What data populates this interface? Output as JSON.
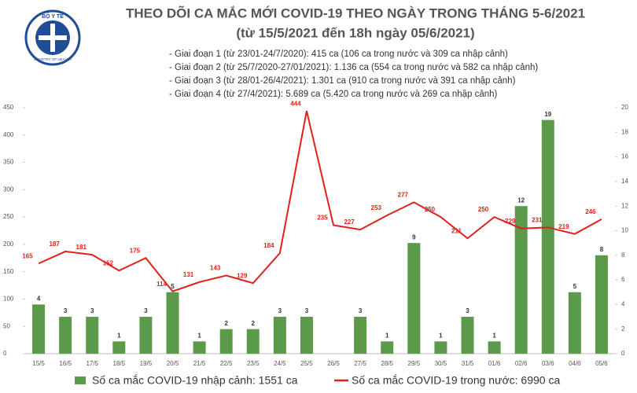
{
  "logo": {
    "top": "BỘ Y TẾ",
    "bottom": "MINISTRY OF HEALTH"
  },
  "chart_data": {
    "type": "combo",
    "title": "THEO DÕI CA MẮC MỚI COVID-19 THEO NGÀY TRONG THÁNG 5-6/2021",
    "subtitle": "(từ 15/5/2021 đến 18h ngày 05/6/2021)",
    "notes": [
      "- Giai đoạn 1 (từ 23/01-24/7/2020): 415 ca (106 ca trong nước và 309 ca nhập cảnh)",
      "- Giai đoạn 2 (từ 25/7/2020-27/01/2021): 1.136 ca (554 ca trong nước và 582 ca nhập cảnh)",
      "- Giai đoạn 3 (từ 28/01-26/4/2021): 1.301 ca (910 ca trong nước và 391 ca nhập cảnh)",
      "- Giai đoạn 4 (từ 27/4/2021): 5.689 ca (5.420 ca trong nước và 269 ca nhập cảnh)"
    ],
    "categories": [
      "15/5",
      "16/5",
      "17/5",
      "18/5",
      "19/5",
      "20/5",
      "21/5",
      "22/5",
      "23/5",
      "24/5",
      "25/5",
      "26/5",
      "27/5",
      "28/5",
      "29/5",
      "30/5",
      "31/5",
      "01/6",
      "02/6",
      "03/6",
      "04/6",
      "05/6"
    ],
    "series": [
      {
        "name": "Số ca mắc COVID-19 nhập cảnh: 1551 ca",
        "type": "bar",
        "axis": "y2",
        "color": "#5b9a4a",
        "values": [
          4,
          3,
          3,
          1,
          3,
          5,
          1,
          2,
          2,
          3,
          3,
          null,
          3,
          1,
          9,
          1,
          3,
          1,
          12,
          19,
          5,
          8
        ]
      },
      {
        "name": "Số ca mắc COVID-19 trong nước: 6990 ca",
        "type": "line",
        "color": "#e0201b",
        "values": [
          165,
          187,
          181,
          152,
          175,
          114,
          131,
          143,
          129,
          184,
          444,
          235,
          227,
          253,
          277,
          250,
          211,
          250,
          229,
          231,
          219,
          246
        ]
      }
    ],
    "ylim": [
      0,
      450
    ],
    "yticks": [
      0,
      50,
      100,
      150,
      200,
      250,
      300,
      350,
      400,
      450
    ],
    "y2lim": [
      0,
      20
    ],
    "y2ticks": [
      0,
      2,
      4,
      6,
      8,
      10,
      12,
      14,
      16,
      18,
      20
    ],
    "grid": false
  }
}
